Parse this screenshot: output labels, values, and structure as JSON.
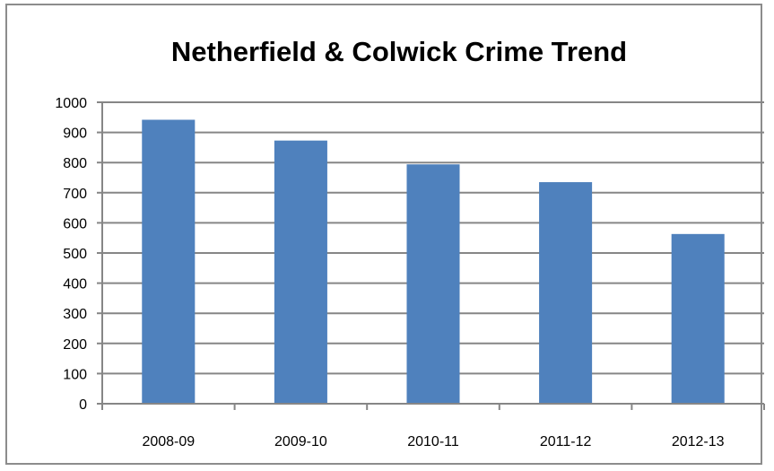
{
  "chart_data": {
    "type": "bar",
    "title": "Netherfield & Colwick Crime Trend",
    "xlabel": "",
    "ylabel": "",
    "categories": [
      "2008-09",
      "2009-10",
      "2010-11",
      "2011-12",
      "2012-13"
    ],
    "values": [
      942,
      873,
      794,
      735,
      563
    ],
    "ylim": [
      0,
      1000
    ],
    "yticks": [
      0,
      100,
      200,
      300,
      400,
      500,
      600,
      700,
      800,
      900,
      1000
    ],
    "grid": true,
    "legend": "none",
    "colors": {
      "bar": "#4f81bd",
      "grid": "#868686",
      "axis": "#868686"
    }
  }
}
